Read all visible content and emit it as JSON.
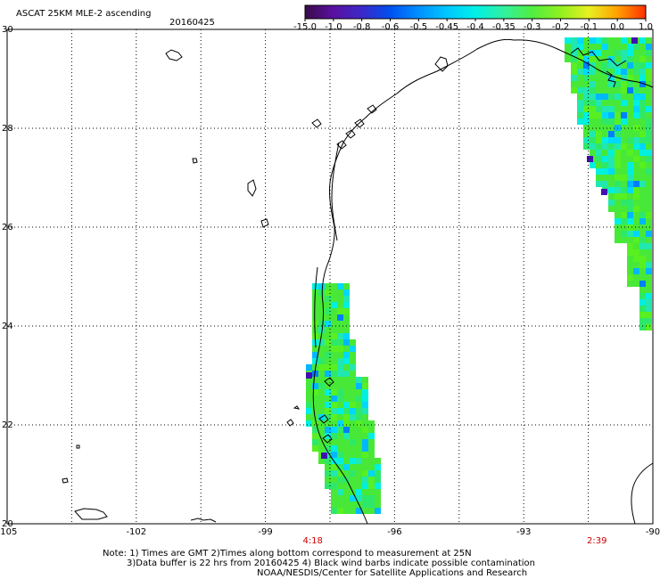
{
  "header": {
    "title": "ASCAT 25KM MLE-2 ascending",
    "date": "20160425"
  },
  "colorbar": {
    "labels": [
      "-15.0",
      "-1.0",
      "-0.8",
      "-0.6",
      "-0.5",
      "-0.45",
      "-0.4",
      "-0.35",
      "-0.3",
      "-0.2",
      "-0.1",
      "0.0",
      "1.0"
    ],
    "colors": [
      "#3a0a4a",
      "#5a10a0",
      "#3c28c8",
      "#0050f0",
      "#0090ff",
      "#00c8ff",
      "#00f0e8",
      "#30f0a0",
      "#50ee40",
      "#90f020",
      "#e8f020",
      "#ffa000",
      "#ff3000"
    ]
  },
  "axes": {
    "x_ticks": [
      "-105",
      "-102",
      "-99",
      "-96",
      "-93",
      "-90"
    ],
    "y_ticks": [
      "30",
      "28",
      "26",
      "24",
      "22",
      "20"
    ],
    "lon_range": [
      -105,
      -90
    ],
    "lat_range": [
      20,
      30
    ]
  },
  "pass_times": [
    "4:18",
    "2:39"
  ],
  "notes": [
    "Note: 1) Times are GMT 2)Times along bottom correspond to measurement at 25N",
    "3)Data buffer is 22 hrs from 20160425 4) Black wind barbs indicate possible contamination",
    "NOAA/NESDIS/Center for Satellite Applications and Research"
  ],
  "map_features": {
    "coastline_color": "#000000",
    "gridline_style": "dotted",
    "swath_colors": [
      "#48e838",
      "#2ee86a",
      "#58f020",
      "#20e8b0",
      "#00f0e0",
      "#00d8ff",
      "#00b8ff",
      "#0080ff",
      "#3c18c0"
    ]
  }
}
